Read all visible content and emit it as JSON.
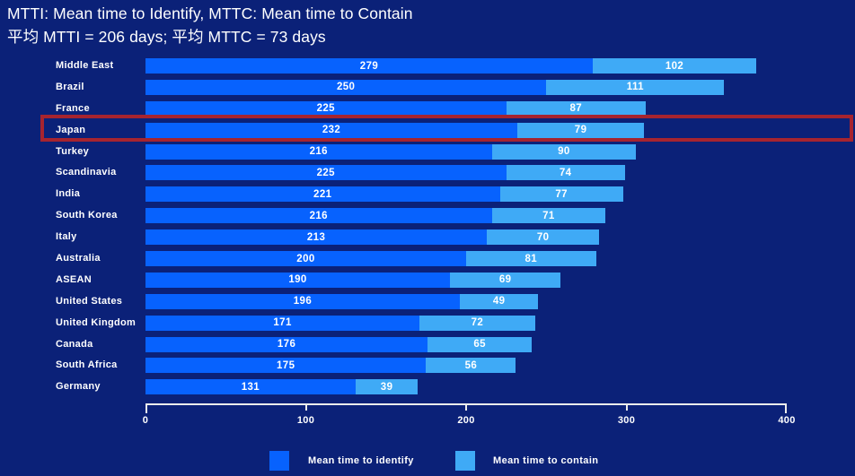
{
  "title": {
    "line1": "MTTI: Mean time to Identify, MTTC: Mean time to Contain",
    "line2": "平均 MTTI = 206 days; 平均 MTTC = 73 days"
  },
  "chart_data": {
    "type": "bar",
    "orientation": "horizontal",
    "stacked": true,
    "title": "MTTI: Mean time to Identify, MTTC: Mean time to Contain",
    "subtitle": "平均 MTTI = 206 days; 平均 MTTC = 73 days",
    "categories": [
      "Middle East",
      "Brazil",
      "France",
      "Japan",
      "Turkey",
      "Scandinavia",
      "India",
      "South Korea",
      "Italy",
      "Australia",
      "ASEAN",
      "United States",
      "United Kingdom",
      "Canada",
      "South Africa",
      "Germany"
    ],
    "series": [
      {
        "name": "Mean time to identify",
        "color": "#0762fe",
        "values": [
          279,
          250,
          225,
          232,
          216,
          225,
          221,
          216,
          213,
          200,
          190,
          196,
          171,
          176,
          175,
          131
        ]
      },
      {
        "name": "Mean time to contain",
        "color": "#3faaf6",
        "values": [
          102,
          111,
          87,
          79,
          90,
          74,
          77,
          71,
          70,
          81,
          69,
          49,
          72,
          65,
          56,
          39
        ]
      }
    ],
    "xlabel": "",
    "ylabel": "",
    "xlim": [
      0,
      400
    ],
    "x_ticks": [
      "0",
      "100",
      "200",
      "300",
      "400"
    ],
    "grid": false,
    "legend_position": "bottom",
    "highlighted_category": "Japan",
    "highlight_color": "#a6242f",
    "background_color": "#0b2178",
    "text_color": "#ffffff"
  }
}
